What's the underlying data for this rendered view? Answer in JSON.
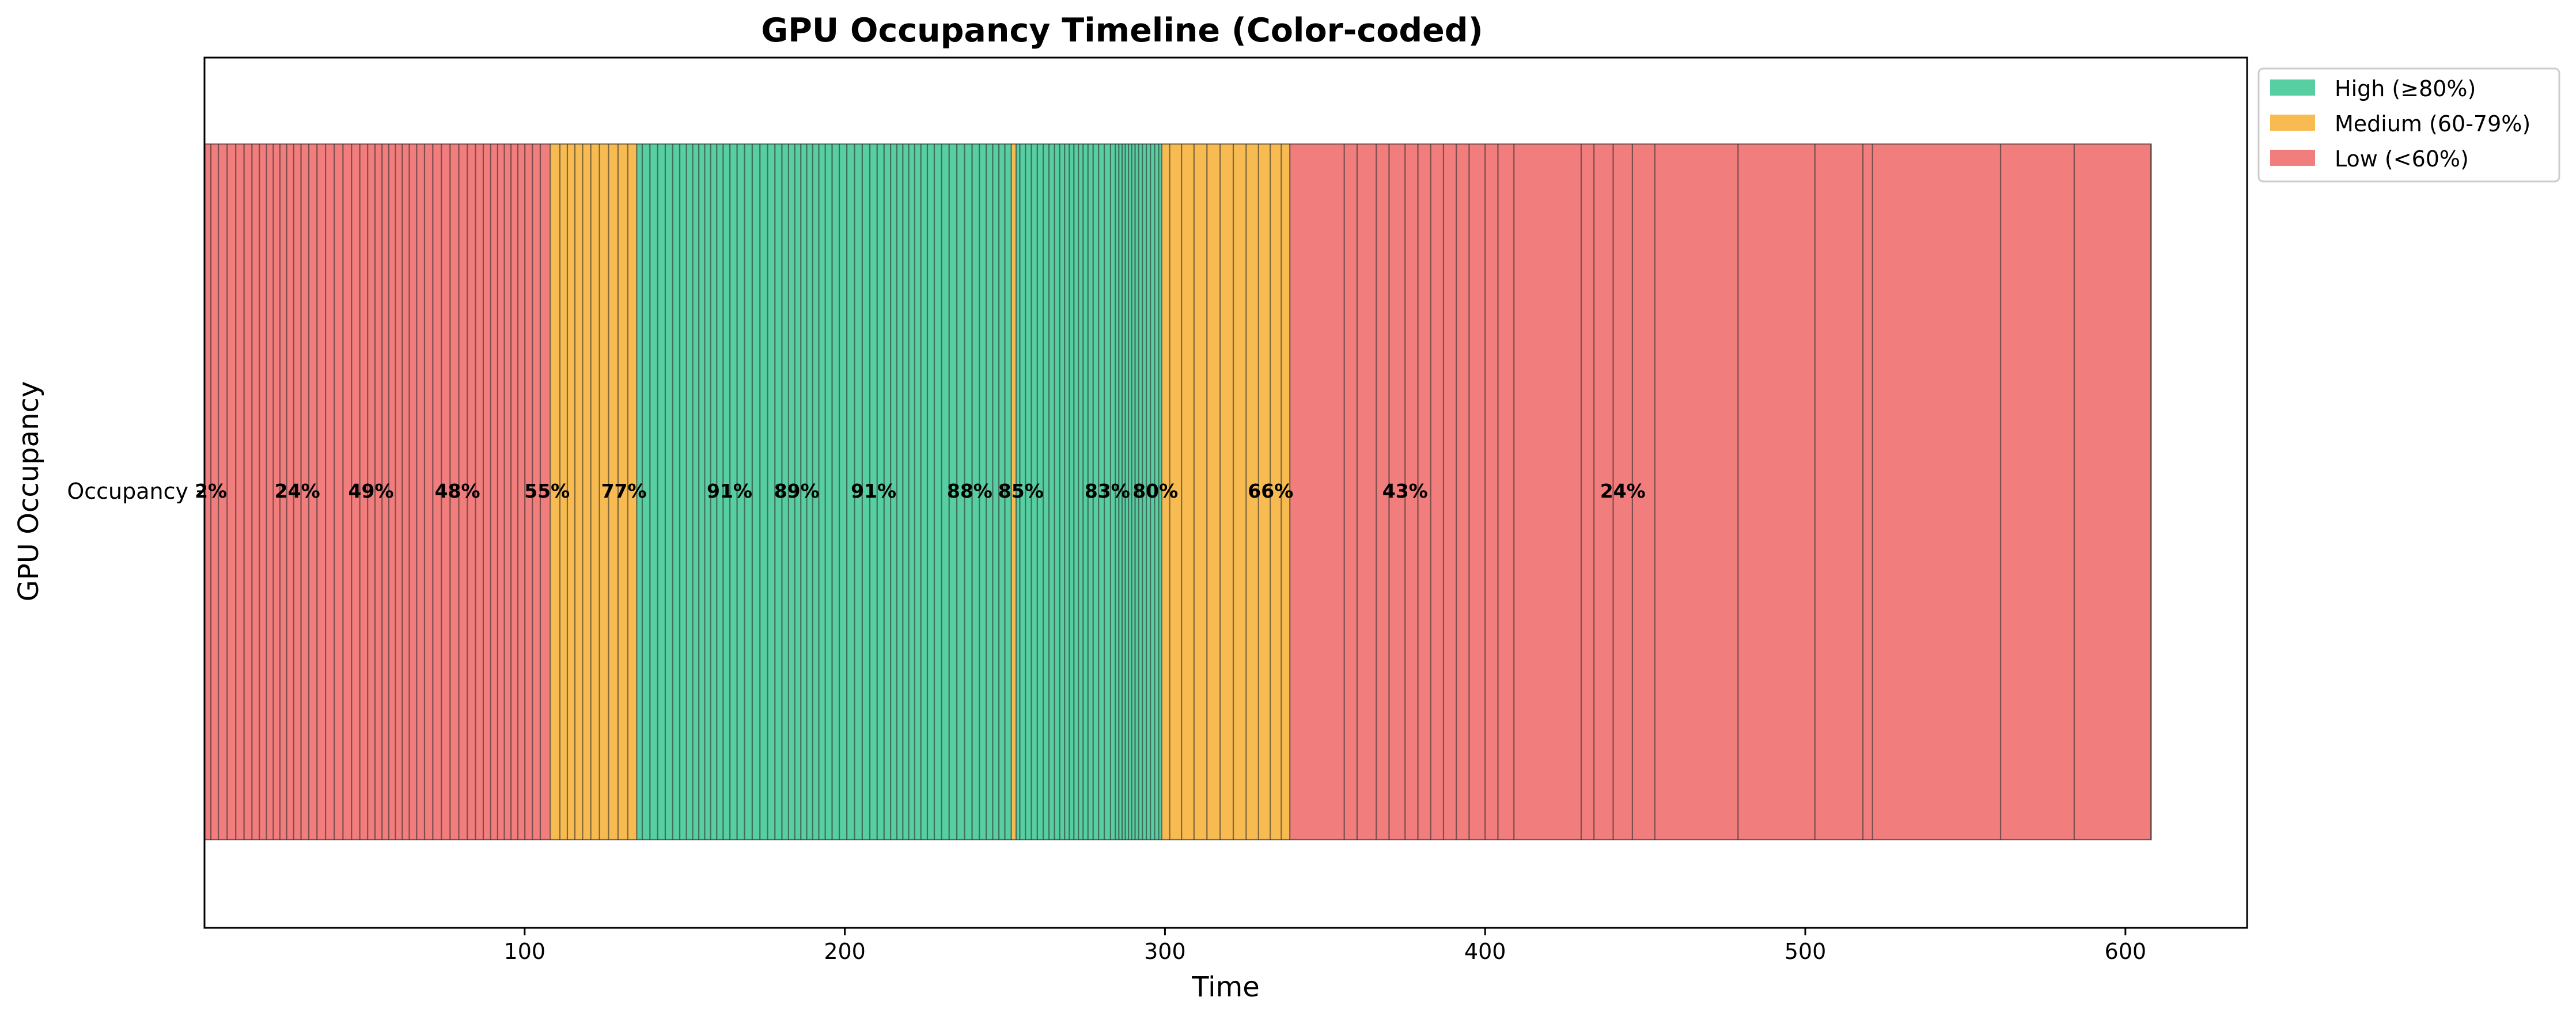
{
  "chart_data": {
    "type": "bar",
    "orientation": "horizontal-timeline",
    "title": "GPU Occupancy Timeline (Color-coded)",
    "xlabel": "Time",
    "ylabel": "GPU Occupancy",
    "y_category": "Occupancy",
    "xlim": [
      0,
      638
    ],
    "x_ticks": [
      "100",
      "200",
      "300",
      "400",
      "500",
      "600"
    ],
    "grid": false,
    "legend": {
      "placement": "outside-top-right",
      "entries": [
        {
          "label": "High (≥80%)",
          "color": "#57CFA2"
        },
        {
          "label": "Medium (60-79%)",
          "color": "#F7BB52"
        },
        {
          "label": "Low (<60%)",
          "color": "#F27D7D"
        }
      ]
    },
    "segment_colors": {
      "high": "#57CFA2",
      "medium": "#F7BB52",
      "low": "#F27D7D"
    },
    "data_labels": [
      {
        "x": 2,
        "text": "2%"
      },
      {
        "x": 29,
        "text": "24%"
      },
      {
        "x": 52,
        "text": "49%"
      },
      {
        "x": 79,
        "text": "48%"
      },
      {
        "x": 107,
        "text": "55%"
      },
      {
        "x": 131,
        "text": "77%"
      },
      {
        "x": 164,
        "text": "91%"
      },
      {
        "x": 185,
        "text": "89%"
      },
      {
        "x": 209,
        "text": "91%"
      },
      {
        "x": 239,
        "text": "88%"
      },
      {
        "x": 255,
        "text": "85%"
      },
      {
        "x": 282,
        "text": "83%"
      },
      {
        "x": 297,
        "text": "80%"
      },
      {
        "x": 333,
        "text": "66%"
      },
      {
        "x": 375,
        "text": "43%"
      },
      {
        "x": 443,
        "text": "24%"
      }
    ],
    "ranges": [
      {
        "start": 0,
        "end": 2,
        "level": "low",
        "lines": 0
      },
      {
        "start": 2,
        "end": 108,
        "level": "low",
        "lines": 44
      },
      {
        "start": 108,
        "end": 135,
        "level": "medium",
        "lines": 10
      },
      {
        "start": 135,
        "end": 252,
        "level": "high",
        "lines": 55
      },
      {
        "start": 252,
        "end": 253.5,
        "level": "medium",
        "lines": 0
      },
      {
        "start": 253.5,
        "end": 283,
        "level": "high",
        "lines": 18
      },
      {
        "start": 283,
        "end": 299,
        "level": "high",
        "lines": 14
      },
      {
        "start": 299,
        "end": 339,
        "level": "medium",
        "lines": 11
      },
      {
        "start": 339,
        "end": 608,
        "level": "low",
        "lines": 0
      }
    ],
    "low_tail_boundaries": [
      356,
      360,
      366,
      370,
      375,
      379,
      383,
      387,
      391,
      395,
      400,
      404,
      409,
      430,
      434,
      440,
      446,
      453,
      479,
      503,
      518,
      521,
      561,
      584,
      608
    ]
  }
}
